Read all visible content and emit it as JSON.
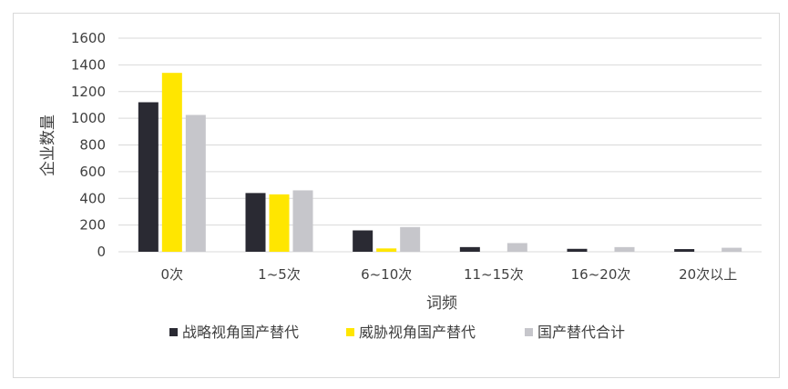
{
  "colors": {
    "series": [
      "#2a2a33",
      "#ffe600",
      "#c6c6cb"
    ],
    "grid": "#d9d9d9",
    "text": "#404040"
  },
  "chart_data": {
    "type": "bar",
    "title": "",
    "xlabel": "词频",
    "ylabel": "企业数量",
    "ylim": [
      0,
      1600
    ],
    "yticks": [
      0,
      200,
      400,
      600,
      800,
      1000,
      1200,
      1400,
      1600
    ],
    "grid": true,
    "legend_position": "bottom",
    "categories": [
      "0次",
      "1~5次",
      "6~10次",
      "11~15次",
      "16~20次",
      "20次以上"
    ],
    "series": [
      {
        "name": "战略视角国产替代",
        "values": [
          1120,
          440,
          160,
          35,
          22,
          20
        ]
      },
      {
        "name": "威胁视角国产替代",
        "values": [
          1340,
          430,
          25,
          0,
          0,
          0
        ]
      },
      {
        "name": "国产替代合计",
        "values": [
          1025,
          460,
          185,
          65,
          35,
          30
        ]
      }
    ]
  }
}
